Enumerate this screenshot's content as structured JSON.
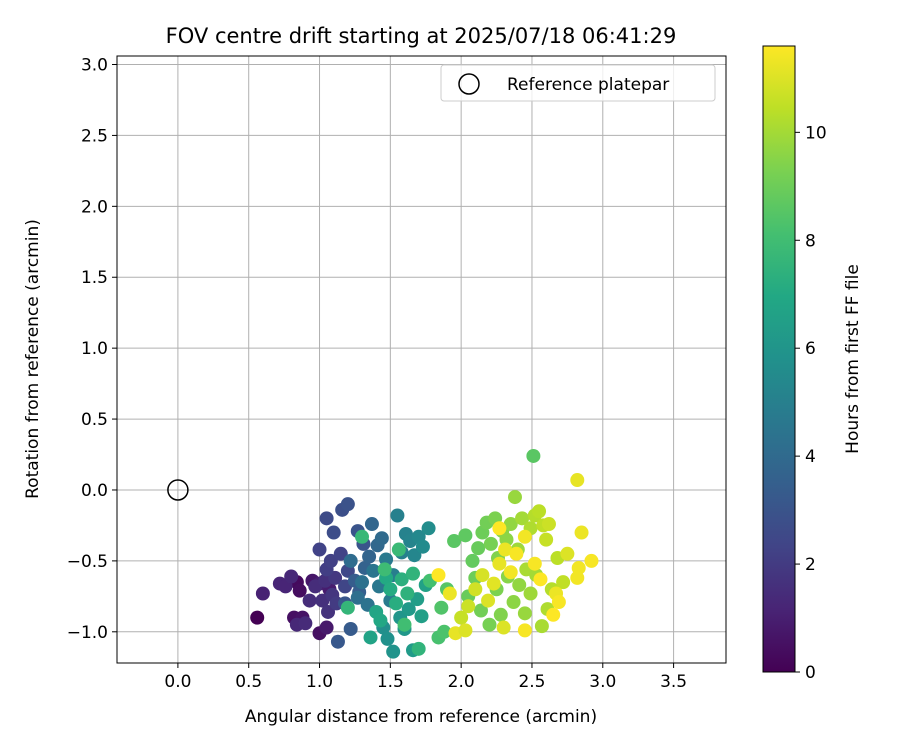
{
  "chart_data": {
    "type": "scatter",
    "title": "FOV centre drift starting at 2025/07/18 06:41:29",
    "xlabel": "Angular distance from reference (arcmin)",
    "ylabel": "Rotation from reference (arcmin)",
    "xlim": [
      -0.43,
      3.87
    ],
    "ylim": [
      -1.22,
      3.06
    ],
    "x_ticks": [
      "0.0",
      "0.5",
      "1.0",
      "1.5",
      "2.0",
      "2.5",
      "3.0",
      "3.5"
    ],
    "y_ticks": [
      "3.0",
      "2.5",
      "2.0",
      "1.5",
      "1.0",
      "0.5",
      "0.0",
      "−0.5",
      "−1.0"
    ],
    "grid": true,
    "legend": {
      "placement": "top-right",
      "entries": [
        {
          "label": "Reference platepar",
          "marker": "open-circle"
        }
      ]
    },
    "reference": {
      "x": 0.0,
      "y": 0.0
    },
    "colorbar": {
      "label": "Hours from first FF file",
      "range": [
        0,
        11.6
      ],
      "ticks": [
        "0",
        "2",
        "4",
        "6",
        "8",
        "10"
      ],
      "colormap": "viridis"
    },
    "points": [
      [
        0.56,
        -0.9,
        0.0
      ],
      [
        0.84,
        -0.65,
        0.3
      ],
      [
        0.86,
        -0.71,
        0.4
      ],
      [
        1.0,
        -1.01,
        0.5
      ],
      [
        0.82,
        -0.9,
        0.5
      ],
      [
        0.88,
        -0.9,
        0.6
      ],
      [
        0.95,
        -0.64,
        0.7
      ],
      [
        1.05,
        -0.97,
        0.8
      ],
      [
        1.07,
        -0.7,
        0.9
      ],
      [
        1.0,
        -0.66,
        1.0
      ],
      [
        0.6,
        -0.73,
        1.1
      ],
      [
        0.72,
        -0.66,
        1.2
      ],
      [
        0.76,
        -0.68,
        1.2
      ],
      [
        0.8,
        -0.61,
        1.3
      ],
      [
        0.84,
        -0.95,
        1.3
      ],
      [
        0.9,
        -0.94,
        1.4
      ],
      [
        0.93,
        -0.78,
        1.5
      ],
      [
        0.97,
        -0.68,
        1.5
      ],
      [
        1.02,
        -0.78,
        1.6
      ],
      [
        1.04,
        -0.64,
        1.6
      ],
      [
        1.06,
        -0.86,
        1.7
      ],
      [
        1.09,
        -0.74,
        1.8
      ],
      [
        1.11,
        -0.62,
        1.9
      ],
      [
        1.12,
        -0.8,
        2.0
      ],
      [
        1.05,
        -0.56,
        2.1
      ],
      [
        1.08,
        -0.5,
        2.2
      ],
      [
        1.0,
        -0.42,
        2.3
      ],
      [
        1.15,
        -0.45,
        2.3
      ],
      [
        1.18,
        -0.68,
        2.4
      ],
      [
        1.2,
        -0.57,
        2.5
      ],
      [
        1.05,
        -0.2,
        2.6
      ],
      [
        1.1,
        -0.3,
        2.7
      ],
      [
        1.16,
        -0.14,
        2.8
      ],
      [
        1.2,
        -0.1,
        2.9
      ],
      [
        1.27,
        -0.29,
        3.0
      ],
      [
        1.31,
        -0.38,
        3.0
      ],
      [
        1.18,
        -0.8,
        3.1
      ],
      [
        1.13,
        -1.07,
        3.2
      ],
      [
        1.22,
        -0.98,
        3.3
      ],
      [
        1.25,
        -0.64,
        3.4
      ],
      [
        1.28,
        -0.72,
        3.5
      ],
      [
        1.32,
        -0.55,
        3.6
      ],
      [
        1.35,
        -0.47,
        3.7
      ],
      [
        1.37,
        -0.24,
        3.8
      ],
      [
        1.41,
        -0.39,
        3.9
      ],
      [
        1.44,
        -0.34,
        4.0
      ],
      [
        1.22,
        -0.5,
        4.1
      ],
      [
        1.27,
        -0.76,
        4.2
      ],
      [
        1.3,
        -0.65,
        4.3
      ],
      [
        1.34,
        -0.81,
        4.4
      ],
      [
        1.38,
        -0.57,
        4.5
      ],
      [
        1.42,
        -0.68,
        4.6
      ],
      [
        1.47,
        -0.49,
        4.7
      ],
      [
        1.5,
        -0.78,
        4.8
      ],
      [
        1.52,
        -0.6,
        4.9
      ],
      [
        1.55,
        -0.18,
        5.0
      ],
      [
        1.58,
        -0.44,
        5.0
      ],
      [
        1.61,
        -0.31,
        5.1
      ],
      [
        1.64,
        -0.36,
        5.2
      ],
      [
        1.67,
        -0.46,
        5.3
      ],
      [
        1.7,
        -0.33,
        5.4
      ],
      [
        1.73,
        -0.4,
        5.5
      ],
      [
        1.77,
        -0.27,
        5.6
      ],
      [
        1.45,
        -0.97,
        5.7
      ],
      [
        1.48,
        -1.05,
        5.8
      ],
      [
        1.52,
        -1.14,
        5.9
      ],
      [
        1.57,
        -0.9,
        6.0
      ],
      [
        1.6,
        -0.98,
        6.1
      ],
      [
        1.63,
        -0.84,
        6.2
      ],
      [
        1.66,
        -1.13,
        6.3
      ],
      [
        1.69,
        -0.77,
        6.4
      ],
      [
        1.72,
        -0.89,
        6.5
      ],
      [
        1.75,
        -0.67,
        6.6
      ],
      [
        1.36,
        -1.04,
        6.7
      ],
      [
        1.4,
        -0.86,
        6.8
      ],
      [
        1.43,
        -0.92,
        6.9
      ],
      [
        1.47,
        -0.62,
        7.0
      ],
      [
        1.5,
        -0.7,
        7.1
      ],
      [
        1.54,
        -0.8,
        7.2
      ],
      [
        1.58,
        -0.63,
        7.3
      ],
      [
        1.62,
        -0.73,
        7.4
      ],
      [
        1.66,
        -0.59,
        7.5
      ],
      [
        1.7,
        -1.12,
        7.5
      ],
      [
        1.2,
        -0.83,
        7.6
      ],
      [
        1.3,
        -0.33,
        7.7
      ],
      [
        1.56,
        -0.42,
        7.8
      ],
      [
        1.46,
        -0.56,
        7.9
      ],
      [
        1.6,
        -0.95,
        8.0
      ],
      [
        1.78,
        -0.64,
        8.1
      ],
      [
        1.84,
        -1.04,
        8.2
      ],
      [
        1.88,
        -1.0,
        8.3
      ],
      [
        1.86,
        -0.83,
        8.4
      ],
      [
        1.9,
        -0.7,
        8.5
      ],
      [
        1.95,
        -0.36,
        8.6
      ],
      [
        2.03,
        -0.32,
        8.7
      ],
      [
        2.08,
        -0.5,
        8.8
      ],
      [
        2.12,
        -0.41,
        8.9
      ],
      [
        2.15,
        -0.3,
        9.0
      ],
      [
        2.18,
        -0.23,
        9.1
      ],
      [
        2.21,
        -0.38,
        9.2
      ],
      [
        2.24,
        -0.2,
        9.3
      ],
      [
        2.26,
        -0.48,
        9.4
      ],
      [
        2.29,
        -0.29,
        9.5
      ],
      [
        2.32,
        -0.35,
        9.6
      ],
      [
        2.35,
        -0.24,
        9.7
      ],
      [
        2.38,
        -0.05,
        9.8
      ],
      [
        2.4,
        -0.42,
        9.9
      ],
      [
        2.43,
        -0.2,
        10.0
      ],
      [
        2.46,
        -0.56,
        10.1
      ],
      [
        2.49,
        -0.27,
        10.2
      ],
      [
        2.52,
        -0.18,
        10.3
      ],
      [
        2.55,
        -0.15,
        10.4
      ],
      [
        2.58,
        -0.25,
        10.5
      ],
      [
        2.6,
        -0.35,
        10.6
      ],
      [
        2.62,
        -0.24,
        10.7
      ],
      [
        2.05,
        -0.75,
        8.9
      ],
      [
        2.1,
        -0.62,
        9.0
      ],
      [
        2.14,
        -0.85,
        9.1
      ],
      [
        2.2,
        -0.95,
        9.2
      ],
      [
        2.25,
        -0.7,
        9.3
      ],
      [
        2.28,
        -0.88,
        9.4
      ],
      [
        2.33,
        -0.61,
        9.5
      ],
      [
        2.37,
        -0.79,
        9.6
      ],
      [
        2.41,
        -0.67,
        9.7
      ],
      [
        2.45,
        -0.87,
        9.8
      ],
      [
        2.49,
        -0.73,
        9.9
      ],
      [
        2.53,
        -0.6,
        10.0
      ],
      [
        2.57,
        -0.96,
        10.1
      ],
      [
        2.61,
        -0.84,
        10.2
      ],
      [
        2.64,
        -0.7,
        10.3
      ],
      [
        2.68,
        -0.48,
        10.4
      ],
      [
        2.72,
        -0.65,
        10.5
      ],
      [
        2.0,
        -0.9,
        10.6
      ],
      [
        2.05,
        -0.82,
        10.7
      ],
      [
        2.1,
        -0.7,
        10.8
      ],
      [
        2.15,
        -0.6,
        10.9
      ],
      [
        2.19,
        -0.78,
        11.0
      ],
      [
        2.23,
        -0.66,
        11.1
      ],
      [
        2.27,
        -0.52,
        11.2
      ],
      [
        2.31,
        -0.42,
        11.3
      ],
      [
        2.35,
        -0.58,
        11.4
      ],
      [
        2.39,
        -0.45,
        11.5
      ],
      [
        2.51,
        0.24,
        8.6
      ],
      [
        2.82,
        0.07,
        11.2
      ],
      [
        2.85,
        -0.3,
        11.3
      ],
      [
        2.92,
        -0.5,
        11.5
      ],
      [
        2.83,
        -0.55,
        11.4
      ],
      [
        2.82,
        -0.62,
        11.4
      ],
      [
        2.75,
        -0.45,
        11.0
      ],
      [
        2.67,
        -0.73,
        11.3
      ],
      [
        2.69,
        -0.79,
        11.5
      ],
      [
        2.65,
        -0.88,
        11.6
      ],
      [
        2.45,
        -0.99,
        11.5
      ],
      [
        1.96,
        -1.01,
        11.2
      ],
      [
        2.03,
        -0.99,
        11.0
      ],
      [
        1.84,
        -0.6,
        11.6
      ],
      [
        1.92,
        -0.73,
        11.3
      ],
      [
        2.27,
        -0.27,
        11.6
      ],
      [
        2.45,
        -0.33,
        11.4
      ],
      [
        2.52,
        -0.52,
        11.5
      ],
      [
        2.56,
        -0.63,
        11.6
      ],
      [
        2.3,
        -0.97,
        11.0
      ]
    ]
  }
}
